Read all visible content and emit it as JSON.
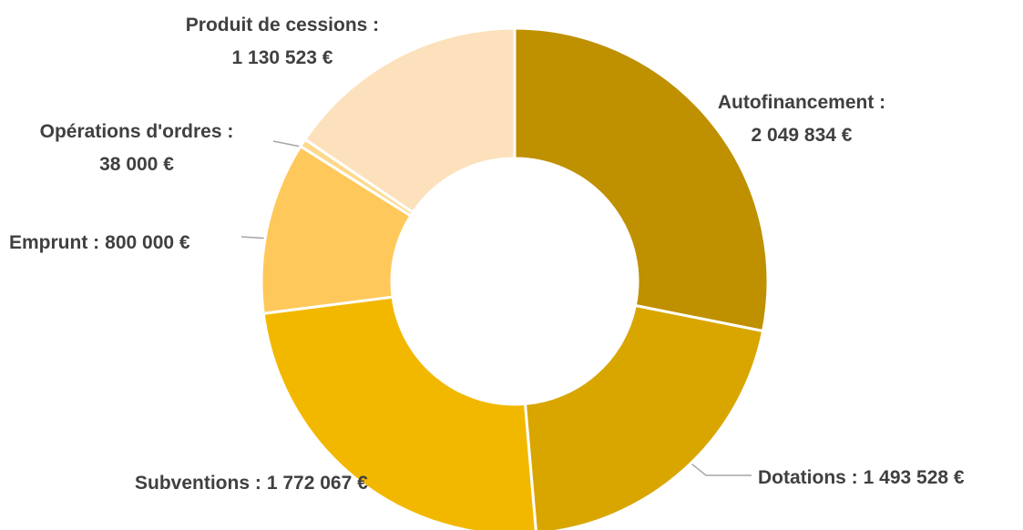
{
  "chart_data": {
    "type": "donut",
    "categories": [
      "Autofinancement :",
      "Dotations :",
      "Subventions :",
      "Emprunt :",
      "Opérations d'ordres :",
      "Produit de cessions :"
    ],
    "values": [
      2049834,
      1493528,
      1772067,
      800000,
      38000,
      1130523
    ],
    "value_labels": [
      "2 049 834 €",
      "1 493 528 €",
      "1 772 067 €",
      "800 000 €",
      "38 000 €",
      "1 130 523 €"
    ],
    "colors": [
      "#bf9000",
      "#d9a600",
      "#f2b800",
      "#ffc85a",
      "#ffd98c",
      "#fde1bd"
    ]
  }
}
